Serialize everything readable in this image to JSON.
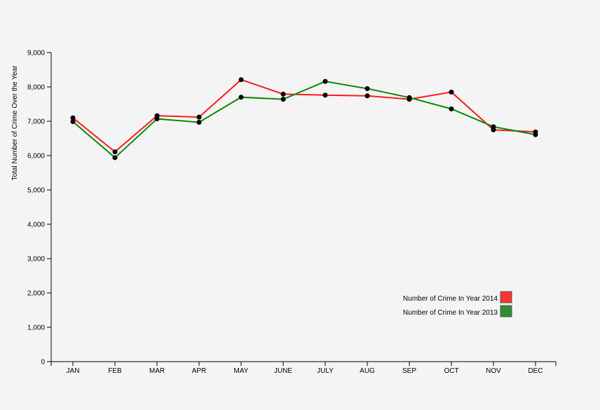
{
  "chart_data": {
    "type": "line",
    "title": "",
    "xlabel": "",
    "ylabel": "Total Number of Crime Over the Year",
    "categories": [
      "JAN",
      "FEB",
      "MAR",
      "APR",
      "MAY",
      "JUNE",
      "JULY",
      "AUG",
      "SEP",
      "OCT",
      "NOV",
      "DEC"
    ],
    "ylim": [
      0,
      9000
    ],
    "yticks": [
      0,
      1000,
      2000,
      3000,
      4000,
      5000,
      6000,
      7000,
      8000,
      9000
    ],
    "ytick_labels": [
      "0",
      "1,000",
      "2,000",
      "3,000",
      "4,000",
      "5,000",
      "6,000",
      "7,000",
      "8,000",
      "9,000"
    ],
    "grid": false,
    "legend_position": "bottom-right",
    "series": [
      {
        "name": "Number of Crime In Year 2014",
        "color": "#ff1a1a",
        "swatch_color": "#ff3333",
        "values": [
          7100,
          6110,
          7160,
          7120,
          8210,
          7790,
          7760,
          7740,
          7640,
          7850,
          6750,
          6690
        ]
      },
      {
        "name": "Number of Crime In Year 2013",
        "color": "#0a8a0a",
        "swatch_color": "#2e8b2e",
        "values": [
          6990,
          5940,
          7070,
          6970,
          7700,
          7640,
          8160,
          7950,
          7690,
          7360,
          6840,
          6610
        ]
      }
    ]
  }
}
